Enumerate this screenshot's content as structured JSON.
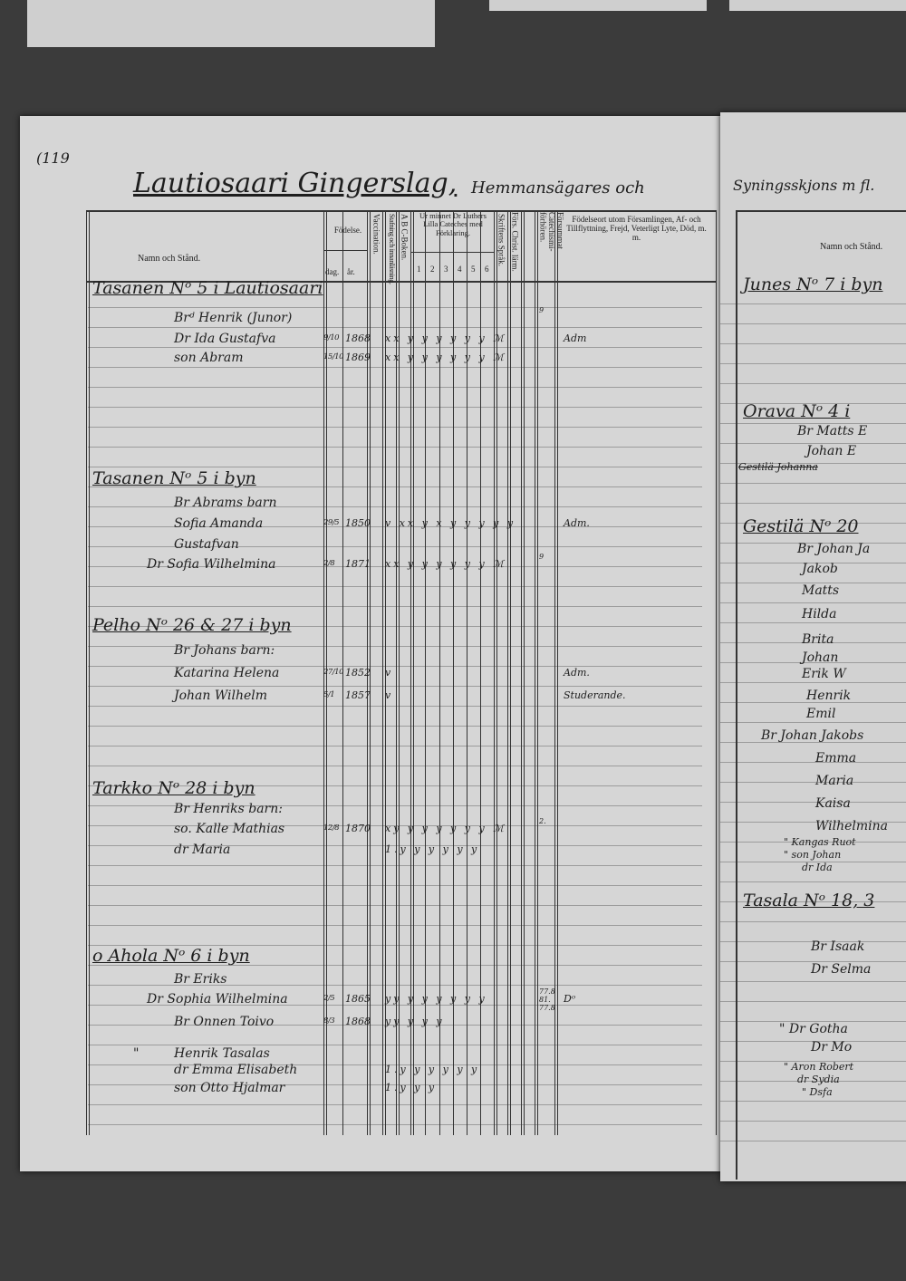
{
  "left_page": {
    "page_number": "(119",
    "title": "Lautiosaari Gingerslag,",
    "title_cont": "Hemmansägares och",
    "headers": {
      "name": "Namn och Stånd.",
      "birth": "Födelse.",
      "day": "dag.",
      "year": "år.",
      "vaccination": "Vaccination.",
      "reading": "Stafning och innanläsning.",
      "abc": "A B C-Boken.",
      "catechism": "Ur minnet Dr Luthers Lilla Cateches med Förklaring.",
      "cat_cols": [
        "1",
        "2",
        "3",
        "4",
        "5",
        "6"
      ],
      "scripture": "Skriftens Språk.",
      "christianity": "Förs. Christ. lärm.",
      "missed": "Försummat Catechismi-förhören.",
      "remarks": "Födelseort utom Församlingen, Af- och Tillflyttning, Frejd, Veterligt Lyte, Död, m. m."
    },
    "entries": [
      {
        "type": "house",
        "name": "Tasanen Nᵒ 5 i Lautiosaari"
      },
      {
        "type": "person",
        "name": "Brᵈ Henrik (Junor)",
        "missed": "9"
      },
      {
        "type": "person",
        "name": "Dr Ida Gustafva",
        "day": "9/10",
        "year": "1868",
        "marks": "xx y y y y y y ℳ",
        "remark": "Adm"
      },
      {
        "type": "person",
        "name": "son Abram",
        "day": "15/10",
        "year": "1869",
        "marks": "xx y y y y y y ℳ"
      },
      {
        "type": "house",
        "name": "Tasanen Nᵒ 5 i byn"
      },
      {
        "type": "person",
        "name": "Br Abrams barn"
      },
      {
        "type": "person",
        "name": "Sofia Amanda",
        "day": "29/5",
        "year": "1850",
        "marks": "v xx y x y y y y y",
        "remark": "Adm."
      },
      {
        "type": "person",
        "name": "Gustafvan"
      },
      {
        "type": "person",
        "name": "Dr Sofia Wilhelmina",
        "day": "2/8",
        "year": "1871",
        "marks": "xx y y y y y y ℳ",
        "missed": "9"
      },
      {
        "type": "house",
        "name": "Pelho Nᵒ 26 & 27 i byn"
      },
      {
        "type": "person",
        "name": "Br Johans barn:"
      },
      {
        "type": "person",
        "name": "Katarina Helena",
        "day": "27/10",
        "year": "1852",
        "marks": "v",
        "remark": "Adm."
      },
      {
        "type": "person",
        "name": "Johan Wilhelm",
        "day": "5/1",
        "year": "1857",
        "marks": "v",
        "remark": "Studerande."
      },
      {
        "type": "house",
        "name": "Tarkko Nᵒ 28 i byn"
      },
      {
        "type": "person",
        "name": "Br Henriks barn:"
      },
      {
        "type": "person",
        "name": "so. Kalle Mathias",
        "day": "12/8",
        "year": "1870",
        "marks": "xy y y y y y y ℳ",
        "missed": "2."
      },
      {
        "type": "person",
        "name": "dr Maria",
        "marks": "1.y y y y y y"
      },
      {
        "type": "house",
        "name": "o Ahola Nᵒ 6 i byn"
      },
      {
        "type": "person",
        "name": "Br Eriks"
      },
      {
        "type": "person",
        "name": "Dr Sophia Wilhelmina",
        "day": "2/5",
        "year": "1865",
        "marks": "yy y y y y y y",
        "missed": "77.8 81. 77.8",
        "remark": "Dᵒ"
      },
      {
        "type": "person",
        "name": "Br Onnen Toivo",
        "day": "8/3",
        "year": "1868",
        "marks": "yy y y y"
      },
      {
        "type": "person",
        "name": "Henrik Tasalas",
        "prefix": "\""
      },
      {
        "type": "person",
        "name": "dr Emma Elisabeth",
        "marks": "1.y y y y y y"
      },
      {
        "type": "person",
        "name": "son Otto Hjalmar",
        "marks": "1.y y y"
      }
    ]
  },
  "right_page": {
    "title": "Syningsskjons m fl.",
    "header_name": "Namn och Stånd.",
    "lines": [
      "Junes Nᵒ 7 i byn",
      "Orava Nᵒ 4 i",
      "Br Matts E",
      "Johan E",
      "Gestilä Johanna",
      "Gestilä Nᵒ 20",
      "Br Johan Ja",
      "Jakob",
      "Matts",
      "Hilda",
      "Brita",
      "Johan",
      "Erik W",
      "Henrik",
      "Emil",
      "Br Johan Jakobs",
      "Emma",
      "Maria",
      "Kaisa",
      "Wilhelmina",
      "\" Kangas Ruot",
      "\" son Johan",
      "dr Ida",
      "Tasala Nᵒ 18, 3",
      "Br Isaak",
      "Dr Selma",
      "\" Dr Gotha",
      "Dr Mo",
      "\" Aron Robert",
      "dr Sydia",
      "\" Dsfa"
    ]
  }
}
